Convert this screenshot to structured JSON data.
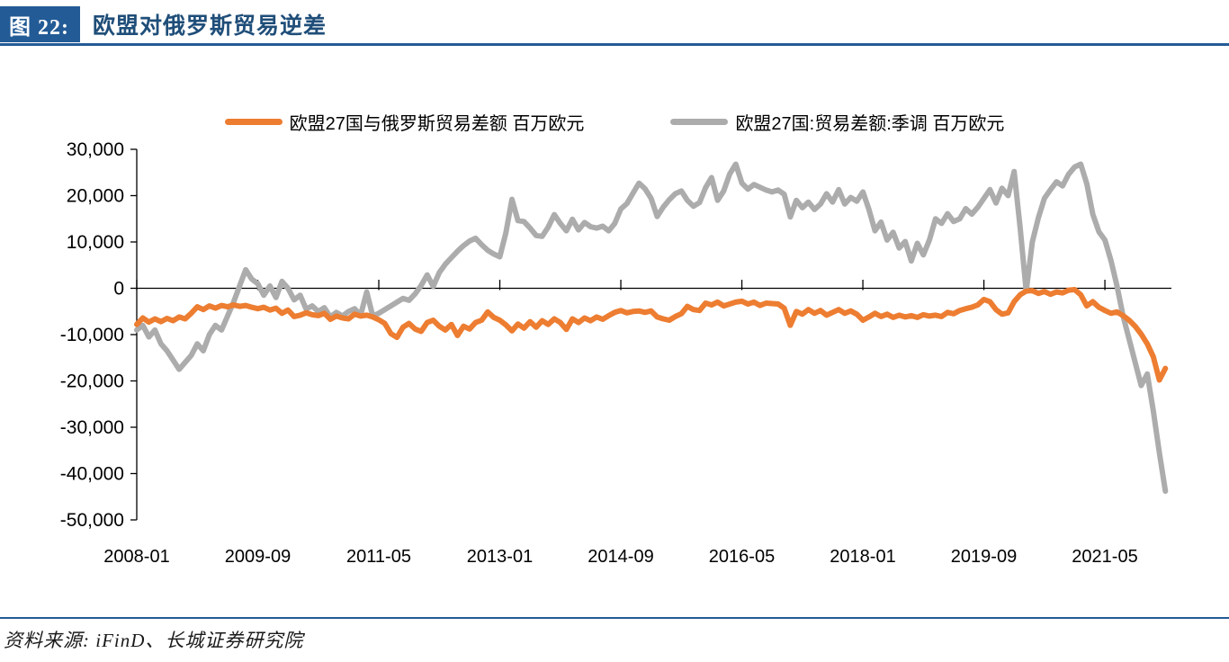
{
  "header": {
    "figure_label": "图 22:",
    "title": "欧盟对俄罗斯贸易逆差"
  },
  "source": {
    "text": "资料来源: iFinD、长城证券研究院"
  },
  "chart_data": {
    "type": "line",
    "title": "欧盟对俄罗斯贸易逆差",
    "unit": "百万欧元",
    "frequency": "monthly",
    "start_month": "2008-01",
    "end_month": "2022-03",
    "xlabel": "",
    "ylabel": "",
    "ylim": [
      -50000,
      30000
    ],
    "grid": "zero-line-only",
    "legend_position": "top-center",
    "x_tick_labels": [
      "2008-01",
      "2009-09",
      "2011-05",
      "2013-01",
      "2014-09",
      "2016-05",
      "2018-01",
      "2019-09",
      "2021-05"
    ],
    "y_ticks": [
      30000,
      20000,
      10000,
      0,
      -10000,
      -20000,
      -30000,
      -40000,
      -50000
    ],
    "y_tick_labels": [
      "30,000",
      "20,000",
      "10,000",
      "0",
      "-10,000",
      "-20,000",
      "-30,000",
      "-40,000",
      "-50,000"
    ],
    "negative_label_color": "#FF0000",
    "axis_color": "#000000",
    "series": [
      {
        "name": "欧盟27国:贸易差额:季调 百万欧元",
        "color": "#ACACAC",
        "z": "back",
        "values": [
          -9000,
          -8000,
          -10500,
          -9000,
          -12000,
          -13500,
          -15500,
          -17500,
          -16000,
          -14500,
          -12000,
          -13500,
          -10000,
          -8000,
          -9000,
          -6000,
          -3000,
          500,
          4000,
          2000,
          1000,
          -1500,
          500,
          -2000,
          1500,
          0,
          -2500,
          -1500,
          -4500,
          -3800,
          -5000,
          -4200,
          -6200,
          -5200,
          -6000,
          -5000,
          -4400,
          -5800,
          -800,
          -6000,
          -5400,
          -4600,
          -3800,
          -3000,
          -2200,
          -2600,
          -1200,
          600,
          2900,
          400,
          3400,
          5200,
          6600,
          8000,
          9200,
          10200,
          10800,
          9400,
          8200,
          7400,
          6800,
          12000,
          19200,
          14600,
          14400,
          13000,
          11400,
          11200,
          13200,
          15900,
          14000,
          12400,
          14900,
          12600,
          14200,
          13300,
          13000,
          13400,
          12400,
          14000,
          17100,
          18300,
          20500,
          22700,
          21500,
          19400,
          15500,
          17500,
          19100,
          20400,
          21000,
          19000,
          17700,
          18500,
          21700,
          23900,
          19000,
          21000,
          24700,
          26800,
          22700,
          21400,
          22400,
          21800,
          21200,
          20800,
          21200,
          20300,
          15400,
          19000,
          17400,
          18600,
          17000,
          18200,
          20400,
          18600,
          21300,
          18200,
          19600,
          18800,
          20800,
          17000,
          12400,
          14300,
          10400,
          12100,
          8700,
          10100,
          5900,
          9700,
          7200,
          10400,
          15000,
          14000,
          16100,
          14400,
          15000,
          17200,
          16000,
          17500,
          19400,
          21300,
          18400,
          21600,
          20000,
          25200,
          13000,
          -600,
          10000,
          15200,
          19400,
          21300,
          23000,
          22100,
          24600,
          26200,
          26800,
          22600,
          16000,
          12200,
          10400,
          6000,
          500,
          -6000,
          -11000,
          -16000,
          -21000,
          -18500,
          -26500,
          -35500,
          -43800
        ]
      },
      {
        "name": "欧盟27国与俄罗斯贸易差额 百万欧元",
        "color": "#ED7D31",
        "z": "front",
        "values": [
          -7800,
          -6400,
          -7300,
          -6600,
          -7200,
          -6500,
          -7000,
          -6200,
          -6600,
          -5400,
          -4000,
          -4600,
          -3800,
          -4300,
          -3700,
          -4000,
          -3600,
          -3900,
          -3700,
          -4100,
          -4400,
          -4100,
          -4700,
          -4300,
          -5400,
          -4700,
          -6100,
          -5800,
          -5300,
          -5700,
          -5900,
          -5400,
          -6700,
          -6000,
          -6400,
          -6600,
          -5600,
          -6000,
          -5800,
          -6200,
          -6800,
          -7600,
          -9800,
          -10600,
          -8400,
          -7600,
          -8800,
          -9300,
          -7400,
          -6900,
          -8200,
          -9000,
          -7800,
          -10200,
          -8200,
          -8800,
          -7400,
          -6900,
          -5100,
          -6300,
          -6900,
          -7900,
          -9200,
          -7700,
          -8600,
          -7200,
          -8400,
          -7000,
          -7800,
          -6600,
          -7400,
          -8900,
          -6600,
          -7400,
          -6400,
          -7000,
          -6200,
          -6700,
          -5900,
          -5200,
          -4800,
          -5300,
          -5000,
          -4900,
          -5200,
          -4900,
          -6200,
          -6600,
          -6900,
          -6100,
          -5500,
          -3900,
          -4600,
          -4800,
          -3200,
          -3600,
          -3000,
          -3800,
          -3400,
          -3000,
          -2800,
          -3400,
          -3000,
          -3700,
          -3200,
          -3300,
          -3400,
          -4300,
          -8000,
          -5000,
          -5600,
          -4600,
          -5400,
          -4800,
          -5800,
          -5200,
          -4600,
          -5400,
          -4900,
          -5600,
          -6900,
          -6200,
          -5400,
          -6100,
          -5600,
          -6300,
          -5800,
          -6200,
          -5900,
          -6300,
          -5700,
          -6000,
          -5800,
          -6100,
          -5200,
          -5500,
          -4800,
          -4400,
          -4100,
          -3600,
          -2400,
          -2900,
          -4600,
          -5600,
          -5300,
          -2900,
          -1400,
          -600,
          -500,
          -1100,
          -700,
          -1300,
          -800,
          -1000,
          -400,
          -300,
          -1400,
          -3800,
          -2900,
          -4100,
          -4800,
          -5400,
          -5100,
          -5900,
          -6900,
          -8200,
          -9900,
          -12000,
          -14800,
          -19800,
          -17300
        ]
      }
    ]
  }
}
